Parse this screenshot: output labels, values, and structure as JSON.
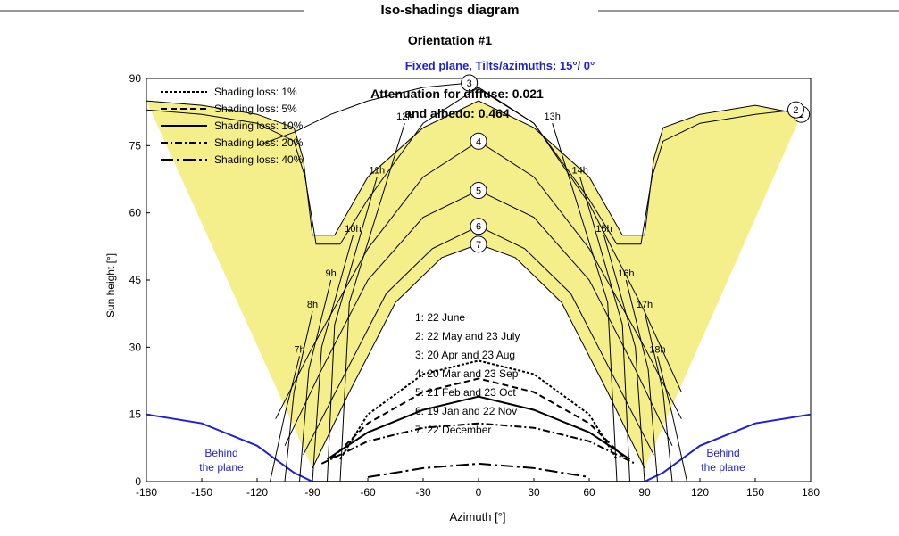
{
  "chart_data": {
    "type": "line",
    "title": "Iso-shadings diagram",
    "subtitle": "Orientation #1",
    "plane_label": "Fixed plane, Tilts/azimuths: 15°/ 0°",
    "xlabel": "Azimuth [°]",
    "ylabel": "Sun height [°]",
    "xlim": [
      -180,
      180
    ],
    "ylim": [
      0,
      90
    ],
    "xticks": [
      -180,
      -150,
      -120,
      -90,
      -60,
      -30,
      0,
      30,
      60,
      90,
      120,
      150,
      180
    ],
    "yticks": [
      0,
      15,
      30,
      45,
      60,
      75,
      90
    ],
    "attenuation_line1": "Attenuation for diffuse: 0.021",
    "attenuation_line2": "and albedo: 0.464",
    "behind_left_1": "Behind",
    "behind_left_2": "the plane",
    "behind_right_1": "Behind",
    "behind_right_2": "the plane",
    "shading_legend": [
      {
        "label": "Shading loss: 1%",
        "dash": "short"
      },
      {
        "label": "Shading loss: 5%",
        "dash": "dash"
      },
      {
        "label": "Shading loss: 10%",
        "dash": "solid"
      },
      {
        "label": "Shading loss: 20%",
        "dash": "dashdot"
      },
      {
        "label": "Shading loss: 40%",
        "dash": "longdashdot"
      }
    ],
    "date_legend": [
      "1: 22 June",
      "2: 22 May and 23 July",
      "3: 20 Apr and 23 Aug",
      "4: 20 Mar and 23 Sep",
      "5: 21 Feb and 23 Oct",
      "6: 19 Jan and 22 Nov",
      "7: 22 December"
    ],
    "sun_paths": [
      {
        "id": "1",
        "points": [
          [
            -180,
            85
          ],
          [
            -150,
            84
          ],
          [
            -120,
            82
          ],
          [
            -100,
            79
          ],
          [
            -95,
            72
          ],
          [
            -90,
            55
          ],
          [
            -78,
            55
          ],
          [
            -60,
            68
          ],
          [
            -30,
            79
          ],
          [
            0,
            85
          ],
          [
            30,
            79
          ],
          [
            60,
            68
          ],
          [
            78,
            55
          ],
          [
            90,
            55
          ],
          [
            95,
            72
          ],
          [
            100,
            79
          ],
          [
            120,
            82
          ],
          [
            150,
            84
          ],
          [
            175,
            82
          ]
        ]
      },
      {
        "id": "2",
        "points": [
          [
            -180,
            83
          ],
          [
            -150,
            82
          ],
          [
            -120,
            80
          ],
          [
            -100,
            76
          ],
          [
            -94,
            68
          ],
          [
            -88,
            53
          ],
          [
            -75,
            53
          ],
          [
            -60,
            63
          ],
          [
            -30,
            80
          ],
          [
            0,
            88
          ],
          [
            30,
            80
          ],
          [
            60,
            63
          ],
          [
            75,
            53
          ],
          [
            88,
            53
          ],
          [
            94,
            68
          ],
          [
            100,
            76
          ],
          [
            120,
            80
          ],
          [
            150,
            82
          ],
          [
            172,
            83
          ]
        ]
      },
      {
        "id": "3",
        "points": [
          [
            -120,
            75
          ],
          [
            -100,
            78
          ],
          [
            -80,
            82
          ],
          [
            -60,
            85
          ],
          [
            -30,
            88
          ],
          [
            -5,
            89
          ],
          [
            30,
            80
          ],
          [
            60,
            62
          ],
          [
            90,
            38
          ],
          [
            110,
            20
          ]
        ]
      },
      {
        "id": "4",
        "points": [
          [
            -110,
            14
          ],
          [
            -90,
            30
          ],
          [
            -60,
            52
          ],
          [
            -30,
            68
          ],
          [
            0,
            76
          ],
          [
            30,
            68
          ],
          [
            60,
            52
          ],
          [
            90,
            30
          ],
          [
            110,
            14
          ]
        ]
      },
      {
        "id": "5",
        "points": [
          [
            -105,
            8
          ],
          [
            -85,
            25
          ],
          [
            -60,
            45
          ],
          [
            -30,
            59
          ],
          [
            0,
            65
          ],
          [
            30,
            59
          ],
          [
            60,
            45
          ],
          [
            85,
            25
          ],
          [
            105,
            8
          ]
        ]
      },
      {
        "id": "6",
        "points": [
          [
            -95,
            6
          ],
          [
            -75,
            22
          ],
          [
            -50,
            42
          ],
          [
            -25,
            52
          ],
          [
            0,
            57
          ],
          [
            25,
            52
          ],
          [
            50,
            42
          ],
          [
            75,
            22
          ],
          [
            95,
            6
          ]
        ]
      },
      {
        "id": "7",
        "points": [
          [
            -90,
            3
          ],
          [
            -70,
            20
          ],
          [
            -45,
            40
          ],
          [
            -20,
            50
          ],
          [
            0,
            53
          ],
          [
            20,
            50
          ],
          [
            45,
            40
          ],
          [
            70,
            20
          ],
          [
            90,
            3
          ]
        ]
      }
    ],
    "hour_lines": [
      {
        "label": "7h",
        "points": [
          [
            -113,
            0
          ],
          [
            -105,
            15
          ],
          [
            -97,
            28
          ]
        ]
      },
      {
        "label": "8h",
        "points": [
          [
            -105,
            0
          ],
          [
            -100,
            20
          ],
          [
            -90,
            38
          ]
        ]
      },
      {
        "label": "9h",
        "points": [
          [
            -97,
            0
          ],
          [
            -92,
            25
          ],
          [
            -80,
            45
          ]
        ]
      },
      {
        "label": "10h",
        "points": [
          [
            -90,
            0
          ],
          [
            -85,
            30
          ],
          [
            -68,
            55
          ]
        ]
      },
      {
        "label": "11h",
        "points": [
          [
            -82,
            0
          ],
          [
            -78,
            35
          ],
          [
            -55,
            68
          ]
        ]
      },
      {
        "label": "12h",
        "points": [
          [
            -75,
            0
          ],
          [
            -70,
            40
          ],
          [
            -40,
            80
          ]
        ]
      },
      {
        "label": "13h",
        "points": [
          [
            75,
            0
          ],
          [
            70,
            40
          ],
          [
            40,
            80
          ]
        ]
      },
      {
        "label": "14h",
        "points": [
          [
            82,
            0
          ],
          [
            78,
            35
          ],
          [
            55,
            68
          ]
        ]
      },
      {
        "label": "15h",
        "points": [
          [
            90,
            0
          ],
          [
            85,
            30
          ],
          [
            68,
            55
          ]
        ]
      },
      {
        "label": "16h",
        "points": [
          [
            97,
            0
          ],
          [
            92,
            25
          ],
          [
            80,
            45
          ]
        ]
      },
      {
        "label": "17h",
        "points": [
          [
            105,
            0
          ],
          [
            100,
            20
          ],
          [
            90,
            38
          ]
        ]
      },
      {
        "label": "18h",
        "points": [
          [
            113,
            0
          ],
          [
            105,
            15
          ],
          [
            97,
            28
          ]
        ]
      }
    ],
    "shading_curves": [
      {
        "loss": "1%",
        "points": [
          [
            -75,
            5
          ],
          [
            -60,
            15
          ],
          [
            -30,
            24
          ],
          [
            0,
            27
          ],
          [
            30,
            24
          ],
          [
            60,
            15
          ],
          [
            75,
            5
          ]
        ]
      },
      {
        "loss": "5%",
        "points": [
          [
            -80,
            5
          ],
          [
            -60,
            13
          ],
          [
            -30,
            20
          ],
          [
            0,
            23
          ],
          [
            30,
            20
          ],
          [
            60,
            13
          ],
          [
            80,
            5
          ]
        ]
      },
      {
        "loss": "10%",
        "points": [
          [
            -82,
            5
          ],
          [
            -60,
            11
          ],
          [
            -30,
            16
          ],
          [
            0,
            19
          ],
          [
            30,
            16
          ],
          [
            60,
            11
          ],
          [
            82,
            5
          ]
        ]
      },
      {
        "loss": "20%",
        "points": [
          [
            -85,
            4
          ],
          [
            -60,
            9
          ],
          [
            -30,
            12
          ],
          [
            0,
            13
          ],
          [
            30,
            12
          ],
          [
            60,
            9
          ],
          [
            85,
            4
          ]
        ]
      },
      {
        "loss": "40%",
        "points": [
          [
            -60,
            1
          ],
          [
            -30,
            3
          ],
          [
            0,
            4
          ],
          [
            30,
            3
          ],
          [
            60,
            1
          ]
        ]
      }
    ],
    "horizon": [
      [
        -180,
        15
      ],
      [
        -150,
        13
      ],
      [
        -120,
        8
      ],
      [
        -100,
        2
      ],
      [
        -90,
        0
      ],
      [
        90,
        0
      ],
      [
        100,
        2
      ],
      [
        120,
        8
      ],
      [
        150,
        13
      ],
      [
        180,
        15
      ]
    ],
    "colors": {
      "fill": "#f4ef8a",
      "curve": "#000000",
      "horizon": "#1f1fd8",
      "plane_label": "#1f1fd8"
    }
  }
}
